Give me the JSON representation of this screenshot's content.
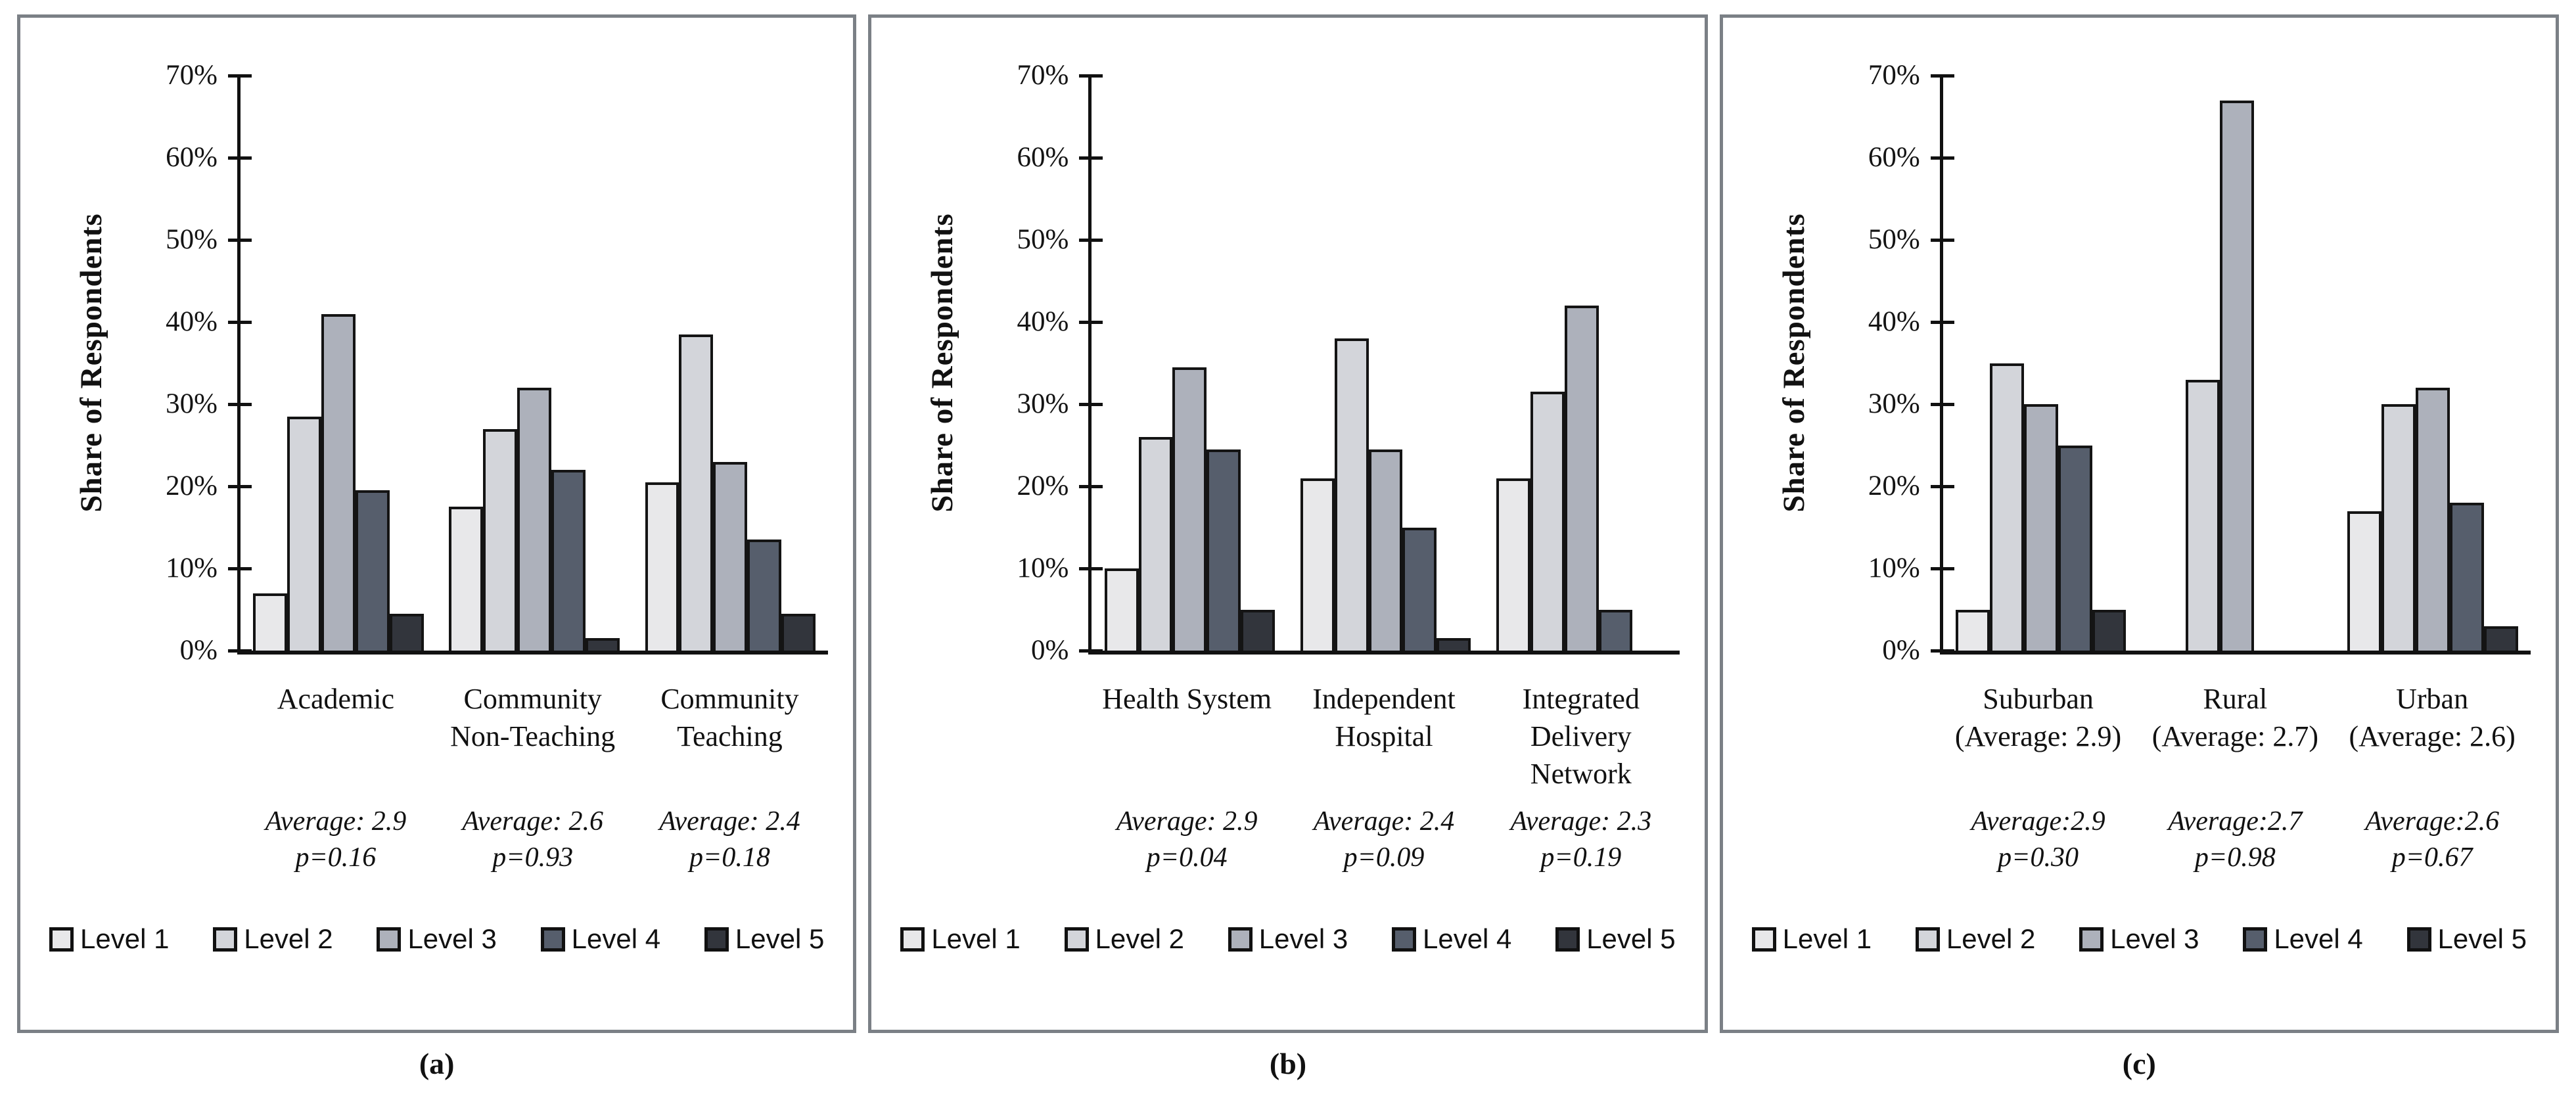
{
  "figure": {
    "y_axis_title": "Share of Respondents",
    "y_ticks_top_to_bottom": [
      "70%",
      "60%",
      "50%",
      "40%",
      "30%",
      "20%",
      "10%",
      "0%"
    ],
    "y_max": 70,
    "legend_labels": [
      "Level 1",
      "Level 2",
      "Level 3",
      "Level 4",
      "Level 5"
    ],
    "colors": {
      "level_fills": [
        "#e8e8ea",
        "#d3d5da",
        "#adb1bb",
        "#565e6c",
        "#32353c"
      ],
      "bar_border": "#141414",
      "panel_border": "#7b8086",
      "axis": "#111111"
    }
  },
  "chart_data": [
    {
      "type": "bar",
      "caption": "(a)",
      "ylabel": "Share of Respondents",
      "ylim": [
        0,
        70
      ],
      "grid": false,
      "legend_position": "bottom",
      "categories": [
        "Academic",
        "Community Non-Teaching",
        "Community Teaching"
      ],
      "category_label_lines": [
        [
          "Academic"
        ],
        [
          "Community",
          "Non-Teaching"
        ],
        [
          "Community",
          "Teaching"
        ]
      ],
      "annotations": [
        [
          "Average: 2.9",
          "p=0.16"
        ],
        [
          "Average: 2.6",
          "p=0.93"
        ],
        [
          "Average: 2.4",
          "p=0.18"
        ]
      ],
      "series": [
        {
          "name": "Level 1",
          "values": [
            7,
            17.5,
            20.5
          ]
        },
        {
          "name": "Level 2",
          "values": [
            28.5,
            27,
            38.5
          ]
        },
        {
          "name": "Level 3",
          "values": [
            41,
            32,
            23
          ]
        },
        {
          "name": "Level 4",
          "values": [
            19.5,
            22,
            13.5
          ]
        },
        {
          "name": "Level 5",
          "values": [
            4.5,
            1.5,
            4.5
          ]
        }
      ]
    },
    {
      "type": "bar",
      "caption": "(b)",
      "ylabel": "Share of Respondents",
      "ylim": [
        0,
        70
      ],
      "grid": false,
      "legend_position": "bottom",
      "categories": [
        "Health System",
        "Independent Hospital",
        "Integrated Delivery Network"
      ],
      "category_label_lines": [
        [
          "Health System"
        ],
        [
          "Independent",
          "Hospital"
        ],
        [
          "Integrated",
          "Delivery",
          "Network"
        ]
      ],
      "annotations": [
        [
          "Average: 2.9",
          "p=0.04"
        ],
        [
          "Average: 2.4",
          "p=0.09"
        ],
        [
          "Average: 2.3",
          "p=0.19"
        ]
      ],
      "series": [
        {
          "name": "Level 1",
          "values": [
            10,
            21,
            21
          ]
        },
        {
          "name": "Level 2",
          "values": [
            26,
            38,
            31.5
          ]
        },
        {
          "name": "Level 3",
          "values": [
            34.5,
            24.5,
            42
          ]
        },
        {
          "name": "Level 4",
          "values": [
            24.5,
            15,
            5
          ]
        },
        {
          "name": "Level 5",
          "values": [
            5,
            1.5,
            0
          ]
        }
      ]
    },
    {
      "type": "bar",
      "caption": "(c)",
      "ylabel": "Share of Respondents",
      "ylim": [
        0,
        70
      ],
      "grid": false,
      "legend_position": "bottom",
      "categories": [
        "Suburban (Average: 2.9)",
        "Rural (Average: 2.7)",
        "Urban (Average: 2.6)"
      ],
      "category_label_lines": [
        [
          "Suburban",
          "(Average: 2.9)"
        ],
        [
          "Rural",
          "(Average: 2.7)"
        ],
        [
          "Urban",
          "(Average: 2.6)"
        ]
      ],
      "annotations": [
        [
          "Average:2.9",
          "p=0.30"
        ],
        [
          "Average:2.7",
          "p=0.98"
        ],
        [
          "Average:2.6",
          "p=0.67"
        ]
      ],
      "series": [
        {
          "name": "Level 1",
          "values": [
            5,
            0,
            17
          ]
        },
        {
          "name": "Level 2",
          "values": [
            35,
            33,
            30
          ]
        },
        {
          "name": "Level 3",
          "values": [
            30,
            67,
            32
          ]
        },
        {
          "name": "Level 4",
          "values": [
            25,
            0,
            18
          ]
        },
        {
          "name": "Level 5",
          "values": [
            5,
            0,
            3
          ]
        }
      ]
    }
  ]
}
